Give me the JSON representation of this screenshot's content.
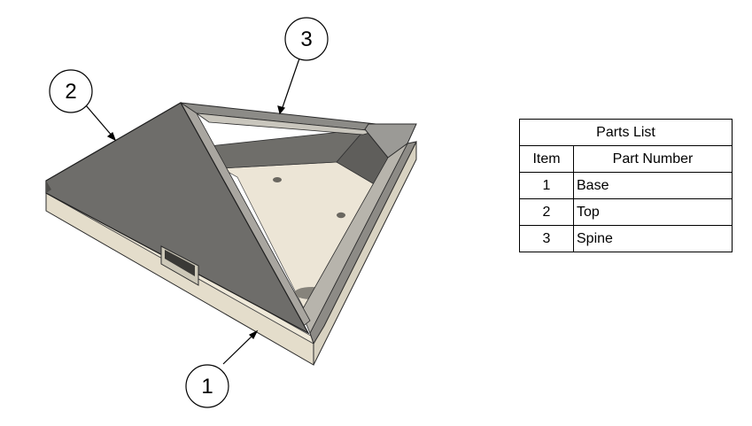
{
  "balloons": [
    {
      "label": "1"
    },
    {
      "label": "2"
    },
    {
      "label": "3"
    }
  ],
  "parts_list": {
    "title": "Parts List",
    "headers": {
      "item": "Item",
      "part_number": "Part Number"
    },
    "rows": [
      {
        "item": "1",
        "part_number": "Base"
      },
      {
        "item": "2",
        "part_number": "Top"
      },
      {
        "item": "3",
        "part_number": "Spine"
      }
    ]
  },
  "colors": {
    "top_gray": "#6e6d6a",
    "base_side": "#e7e2d3",
    "base_floor": "#ece5d6",
    "leader": "#000000"
  }
}
